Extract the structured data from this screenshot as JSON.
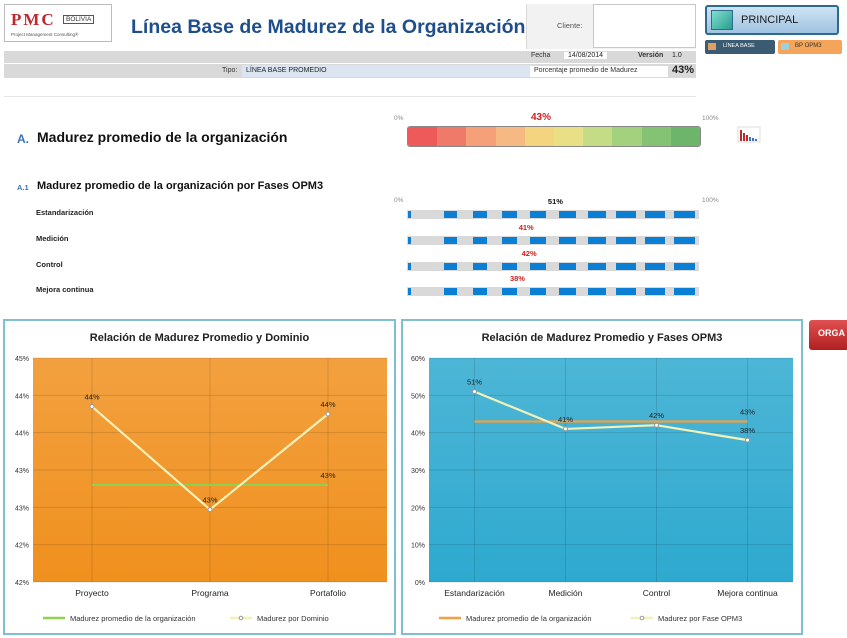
{
  "header": {
    "logo_text": "PMC",
    "logo_badge": "BOLIVIA",
    "logo_sub": "Project Management Consulting®",
    "title": "Línea Base de Madurez de la Organización",
    "cliente_label": "Cliente:",
    "cliente_value": "",
    "fecha_label": "Fecha",
    "fecha_value": "14/08/2014",
    "version_label": "Versión",
    "version_value": "1.0",
    "tipo_label": "Tipo:",
    "tipo_value": "LÍNEA BASE PROMEDIO",
    "pct_label": "Porcentaje promedio de Madurez",
    "pct_value": "43%"
  },
  "nav": {
    "principal_label": "PRINCIPAL",
    "linea_base_label": "LÍNEA BASE",
    "bp_label": "BP OPM3",
    "org_tab_label": "ORGA"
  },
  "section_a": {
    "letter": "A.",
    "title": "Madurez promedio de la organización",
    "scale_min": "0%",
    "scale_max": "100%",
    "value_label": "43%",
    "value": 0.43,
    "gauge_colors": [
      "#ee5a5a",
      "#f07a6a",
      "#f5a078",
      "#f7b983",
      "#f5d47f",
      "#e9df86",
      "#c5dc86",
      "#a4d17e",
      "#84c374",
      "#6cb56a"
    ]
  },
  "section_a1": {
    "letter": "A.1",
    "title": "Madurez promedio de la organización por Fases OPM3",
    "scale_min": "0%",
    "scale_max": "100%",
    "phases": [
      {
        "name": "Estandarización",
        "value": 0.51,
        "label": "51%",
        "color": "#111111"
      },
      {
        "name": "Medición",
        "value": 0.41,
        "label": "41%",
        "color": "#cc2222"
      },
      {
        "name": "Control",
        "value": 0.42,
        "label": "42%",
        "color": "#cc2222"
      },
      {
        "name": "Mejora continua",
        "value": 0.38,
        "label": "38%",
        "color": "#cc2222"
      }
    ]
  },
  "chart_data": [
    {
      "type": "line",
      "title": "Relación de Madurez Promedio y Dominio",
      "categories": [
        "Proyecto",
        "Programa",
        "Portafolio"
      ],
      "y_tick_labels": [
        "45%",
        "44%",
        "44%",
        "43%",
        "43%",
        "42%",
        "42%"
      ],
      "ylim": [
        0.42,
        0.45
      ],
      "series": [
        {
          "name": "Madurez promedio de la organización",
          "values": [
            0.433,
            0.433,
            0.433
          ],
          "color": "#8fd14f",
          "labels": [
            "",
            "",
            "43%"
          ]
        },
        {
          "name": "Madurez por Dominio",
          "values": [
            0.4435,
            0.4297,
            0.4425
          ],
          "color": "#f3f0b8",
          "labels": [
            "44%",
            "43%",
            "44%"
          ]
        }
      ],
      "background": "#f0901e",
      "legend": "bottom"
    },
    {
      "type": "line",
      "title": "Relación de Madurez Promedio y Fases OPM3",
      "categories": [
        "Estandarización",
        "Medición",
        "Control",
        "Mejora continua"
      ],
      "y_tick_labels": [
        "60%",
        "50%",
        "40%",
        "30%",
        "20%",
        "10%",
        "0%"
      ],
      "ylim": [
        0,
        0.6
      ],
      "series": [
        {
          "name": "Madurez promedio de la organización",
          "values": [
            0.43,
            0.43,
            0.43,
            0.43
          ],
          "color": "#f0a040",
          "labels": [
            "",
            "",
            "",
            "43%"
          ]
        },
        {
          "name": "Madurez por Fase OPM3",
          "values": [
            0.51,
            0.41,
            0.42,
            0.38
          ],
          "color": "#f3f0b8",
          "labels": [
            "51%",
            "41%",
            "42%",
            "38%"
          ]
        }
      ],
      "background": "#2ea9cf",
      "legend": "bottom"
    }
  ]
}
